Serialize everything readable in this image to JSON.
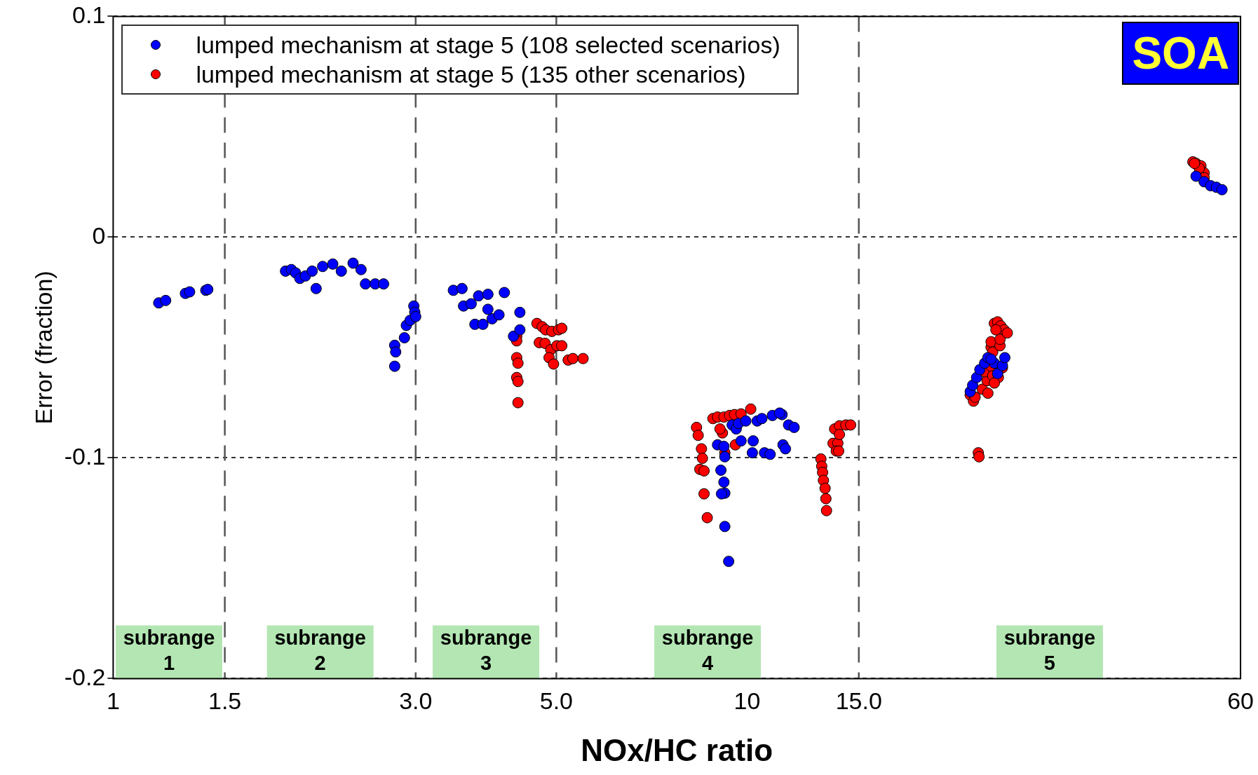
{
  "chart_data": {
    "type": "scatter",
    "xlabel": "NOx/HC ratio",
    "ylabel": "Error (fraction)",
    "log": "x",
    "xlim": [
      1,
      60
    ],
    "xticks": [
      1,
      1.5,
      {
        "value": 3,
        "label": "3.0"
      },
      {
        "value": 5,
        "label": "5.0"
      },
      10,
      {
        "value": 15,
        "label": "15.0"
      },
      60
    ],
    "ylim": [
      -0.2,
      0.1
    ],
    "yticks": [
      -0.2,
      -0.1,
      0,
      0.1
    ],
    "grid": "y",
    "legend": "top left",
    "marker": "circle",
    "ref_lines": [
      {
        "axis": "x",
        "value": 1.5,
        "color": "#555555",
        "line_style": "dashed"
      },
      {
        "axis": "x",
        "value": 3,
        "color": "#555555",
        "line_style": "dashed"
      },
      {
        "axis": "x",
        "value": 5,
        "color": "#555555",
        "line_style": "dashed"
      },
      {
        "axis": "x",
        "value": 15,
        "color": "#555555",
        "line_style": "dashed"
      }
    ],
    "annotations": [
      "SOA",
      "subrange 1",
      "subrange 2",
      "subrange 3",
      "subrange 4",
      "subrange 5"
    ],
    "series": [
      {
        "name": "lumped mechanism at stage 5 (108 selected scenarios)",
        "color": "#0000ff",
        "x": [
          1.18,
          1.21,
          1.3,
          1.32,
          1.4,
          1.41,
          1.87,
          1.91,
          1.94,
          1.97,
          2.01,
          2.06,
          2.09,
          2.14,
          2.22,
          2.29,
          2.39,
          2.46,
          2.5,
          2.59,
          2.67,
          2.78,
          2.79,
          2.78,
          2.88,
          2.9,
          2.94,
          2.98,
          2.99,
          3.0,
          3.44,
          3.55,
          3.57,
          3.67,
          3.72,
          3.77,
          3.83,
          3.9,
          3.96,
          4.06,
          4.14,
          4.28,
          4.38,
          4.38,
          3.9,
          8.98,
          9.19,
          9.22,
          9.09,
          9.19,
          9.22,
          9.11,
          9.22,
          9.35,
          9.47,
          9.61,
          9.69,
          9.95,
          9.78,
          10.22,
          10.19,
          10.65,
          10.87,
          10.37,
          10.55,
          10.96,
          11.35,
          11.62,
          11.86,
          11.39,
          11.49,
          11.25,
          22.48,
          22.68,
          23.01,
          23.28,
          23.69,
          23.97,
          24.54,
          24.83,
          25.27,
          25.49,
          24.25,
          51.05,
          52.57,
          53.82,
          54.96,
          56.09
        ],
        "values": [
          -0.0298,
          -0.0287,
          -0.0255,
          -0.0248,
          -0.0241,
          -0.0237,
          -0.0154,
          -0.0147,
          -0.0162,
          -0.0187,
          -0.0176,
          -0.0154,
          -0.0233,
          -0.0133,
          -0.0122,
          -0.0154,
          -0.0118,
          -0.0147,
          -0.0212,
          -0.0212,
          -0.0212,
          -0.049,
          -0.052,
          -0.0585,
          -0.0456,
          -0.04,
          -0.0377,
          -0.0312,
          -0.034,
          -0.036,
          -0.0241,
          -0.0233,
          -0.0312,
          -0.0302,
          -0.0395,
          -0.0266,
          -0.0395,
          -0.0327,
          -0.037,
          -0.0352,
          -0.0251,
          -0.0449,
          -0.0341,
          -0.042,
          -0.0259,
          -0.0941,
          -0.0948,
          -0.0995,
          -0.1056,
          -0.111,
          -0.116,
          -0.1163,
          -0.1311,
          -0.1469,
          -0.0851,
          -0.0869,
          -0.0844,
          -0.0833,
          -0.0923,
          -0.0923,
          -0.0977,
          -0.0977,
          -0.0984,
          -0.0833,
          -0.0822,
          -0.0808,
          -0.0804,
          -0.0851,
          -0.0862,
          -0.0941,
          -0.0959,
          -0.0797,
          -0.07,
          -0.0671,
          -0.0636,
          -0.06,
          -0.0571,
          -0.0546,
          -0.0571,
          -0.0618,
          -0.0582,
          -0.0546,
          -0.0553,
          0.0276,
          0.0251,
          0.0233,
          0.0226,
          0.0215
        ]
      },
      {
        "name": "lumped mechanism at stage 5 (135 other scenarios)",
        "color": "#ff0000",
        "x": [
          4.33,
          4.33,
          4.33,
          4.35,
          4.33,
          4.35,
          4.35,
          4.66,
          4.75,
          4.81,
          4.92,
          5.04,
          5.1,
          4.7,
          4.8,
          4.9,
          5.01,
          5.1,
          4.87,
          4.95,
          5.22,
          5.31,
          5.51,
          8.32,
          8.37,
          8.47,
          8.5,
          8.42,
          8.55,
          8.55,
          8.65,
          8.83,
          8.98,
          9.19,
          9.38,
          9.55,
          9.78,
          10.13,
          9.14,
          9.06,
          9.22,
          9.58,
          13.07,
          13.11,
          13.15,
          13.19,
          13.27,
          13.31,
          13.34,
          13.66,
          13.9,
          13.82,
          13.94,
          13.74,
          13.98,
          14.31,
          14.56,
          13.98,
          22.48,
          22.75,
          22.88,
          23.15,
          23.21,
          23.49,
          23.9,
          23.69,
          24.25,
          23.97,
          24.39,
          24.25,
          24.25,
          24.39,
          25.05,
          25.05,
          24.54,
          24.83,
          25.12,
          25.42,
          25.72,
          24.68,
          24.9,
          24.54,
          25.27,
          51.05,
          51.96,
          52.57,
          50.46,
          51.65,
          52.57,
          50.76
        ],
        "values": [
          -0.0449,
          -0.047,
          -0.0546,
          -0.0571,
          -0.0636,
          -0.0654,
          -0.075,
          -0.0391,
          -0.0406,
          -0.042,
          -0.0427,
          -0.042,
          -0.0413,
          -0.0478,
          -0.0481,
          -0.051,
          -0.0492,
          -0.0492,
          -0.0546,
          -0.0575,
          -0.0557,
          -0.055,
          -0.055,
          -0.0862,
          -0.0898,
          -0.0959,
          -0.1002,
          -0.1052,
          -0.1059,
          -0.1163,
          -0.1271,
          -0.0822,
          -0.0815,
          -0.0815,
          -0.0808,
          -0.0804,
          -0.0801,
          -0.0779,
          -0.0887,
          -0.0869,
          -0.0977,
          -0.0941,
          -0.1005,
          -0.1038,
          -0.1066,
          -0.1102,
          -0.1138,
          -0.1185,
          -0.1239,
          -0.0934,
          -0.0934,
          -0.0969,
          -0.0969,
          -0.0869,
          -0.0855,
          -0.0851,
          -0.0851,
          -0.0894,
          -0.0715,
          -0.0743,
          -0.0725,
          -0.0977,
          -0.0995,
          -0.0689,
          -0.065,
          -0.061,
          -0.0585,
          -0.0707,
          -0.0628,
          -0.0499,
          -0.0474,
          -0.0521,
          -0.0492,
          -0.0463,
          -0.0391,
          -0.0384,
          -0.0402,
          -0.042,
          -0.0434,
          -0.042,
          -0.0636,
          -0.0661,
          -0.0592,
          0.0334,
          0.0323,
          0.0291,
          0.0341,
          0.0312,
          0.0269,
          0.0334
        ]
      }
    ]
  }
}
